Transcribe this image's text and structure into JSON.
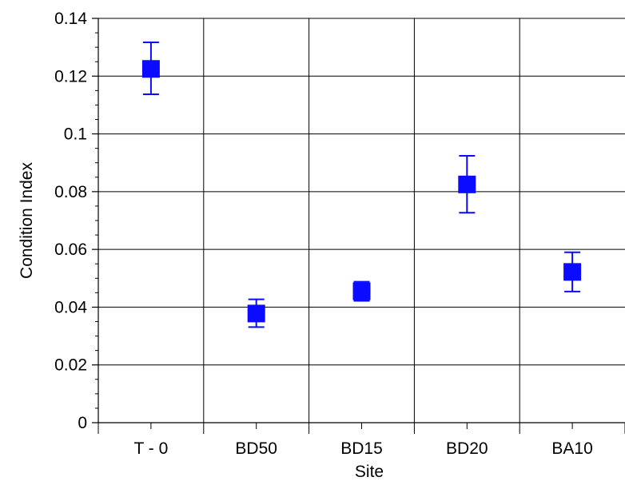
{
  "colors": {
    "marker": "#0b0bff",
    "errorbar": "#0b0bff",
    "grid": "#000000",
    "axis": "#000000",
    "background": "#ffffff"
  },
  "chart_data": {
    "type": "scatter",
    "title": "",
    "xlabel": "Site",
    "ylabel": "Condition Index",
    "categories": [
      "T - 0",
      "BD50",
      "BD15",
      "BD20",
      "BA10"
    ],
    "series": [
      {
        "values": [
          0.1225,
          0.0378,
          0.0455,
          0.0825,
          0.0522
        ],
        "error_low": [
          0.1137,
          0.0331,
          0.0422,
          0.0727,
          0.0454
        ],
        "error_high": [
          0.1317,
          0.0427,
          0.0488,
          0.0924,
          0.059
        ],
        "marker": "square"
      }
    ],
    "ylim": [
      0,
      0.14
    ],
    "yticks": [
      0,
      0.02,
      0.04,
      0.06,
      0.08,
      0.1,
      0.12,
      0.14
    ],
    "ytick_labels": [
      "0",
      "0.02",
      "0.04",
      "0.06",
      "0.08",
      "0.1",
      "0.12",
      "0.14"
    ],
    "grid": true,
    "legend": "none"
  }
}
